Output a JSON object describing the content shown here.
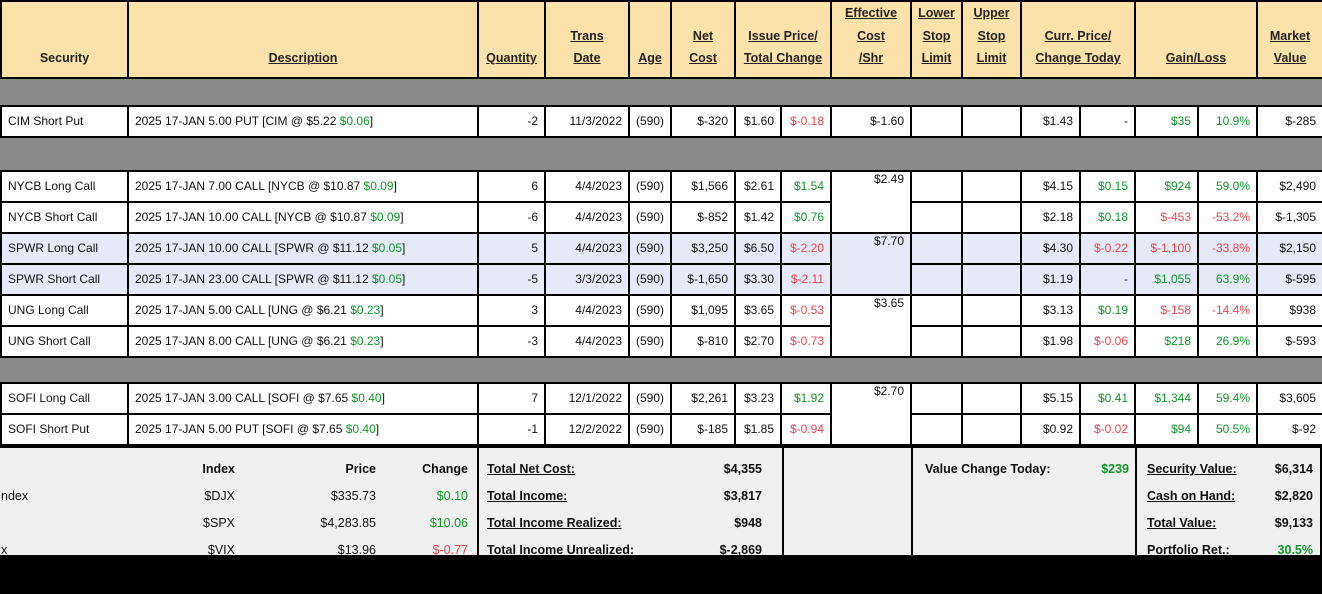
{
  "colors": {
    "positive": "#11962a",
    "negative": "#e8474c",
    "header_bg": "#fbe2aa",
    "group_alt_bg": "#e6e9f8",
    "grid_bg": "#8a8a8a",
    "panel_bg": "#f0f0f0"
  },
  "table": {
    "headers": [
      {
        "label": "Security",
        "colspan": 1,
        "underline": false
      },
      {
        "label": "Description",
        "colspan": 1,
        "underline": true
      },
      {
        "label": "Quantity",
        "colspan": 1,
        "underline": true
      },
      {
        "label": "Trans\nDate",
        "colspan": 1,
        "underline": true
      },
      {
        "label": "Age",
        "colspan": 1,
        "underline": true
      },
      {
        "label": "Net\nCost",
        "colspan": 1,
        "underline": true
      },
      {
        "label": "Issue Price/\nTotal Change",
        "colspan": 2,
        "underline": true
      },
      {
        "label": "Effective\nCost\n/Shr",
        "colspan": 1,
        "underline": true
      },
      {
        "label": "Lower\nStop\nLimit",
        "colspan": 1,
        "underline": true
      },
      {
        "label": "Upper\nStop\nLimit",
        "colspan": 1,
        "underline": true
      },
      {
        "label": "Curr. Price/\nChange Today",
        "colspan": 2,
        "underline": true
      },
      {
        "label": "Gain/Loss",
        "colspan": 2,
        "underline": true
      },
      {
        "label": "Market\nValue",
        "colspan": 1,
        "underline": true
      }
    ],
    "rows": [
      {
        "type": "spacer",
        "size": "a"
      },
      {
        "type": "position",
        "security": "CIM Short Put",
        "desc": "2025 17-JAN 5.00 PUT [CIM @ $5.22 ",
        "desc_chg": "$0.06",
        "desc_end": "]",
        "qty": "-2",
        "date": "11/3/2022",
        "age": "(590)",
        "net_cost": "$-320",
        "issue": "$1.60",
        "chg": "$-0.18",
        "chg_cls": "neg",
        "eff": "$-1.60",
        "eff_rows": 1,
        "lower": "",
        "upper": "",
        "curr": "$1.43",
        "today": "-",
        "today_cls": "",
        "gain": "$35",
        "gain_cls": "pos",
        "pct": "10.9%",
        "pct_cls": "pos",
        "mval": "$-285",
        "alt": false
      },
      {
        "type": "spacer",
        "size": "b"
      },
      {
        "type": "position",
        "security": "NYCB Long Call",
        "desc": "2025 17-JAN 7.00 CALL [NYCB @ $10.87 ",
        "desc_chg": "$0.09",
        "desc_end": "]",
        "qty": "6",
        "date": "4/4/2023",
        "age": "(590)",
        "net_cost": "$1,566",
        "issue": "$2.61",
        "chg": "$1.54",
        "chg_cls": "pos",
        "eff": "$2.49",
        "eff_rows": 2,
        "lower": "",
        "upper": "",
        "curr": "$4.15",
        "today": "$0.15",
        "today_cls": "pos",
        "gain": "$924",
        "gain_cls": "pos",
        "pct": "59.0%",
        "pct_cls": "pos",
        "mval": "$2,490",
        "alt": false
      },
      {
        "type": "position",
        "security": "NYCB Short Call",
        "desc": "2025 17-JAN 10.00 CALL [NYCB @ $10.87 ",
        "desc_chg": "$0.09",
        "desc_end": "]",
        "qty": "-6",
        "date": "4/4/2023",
        "age": "(590)",
        "net_cost": "$-852",
        "issue": "$1.42",
        "chg": "$0.76",
        "chg_cls": "pos",
        "eff": null,
        "lower": "",
        "upper": "",
        "curr": "$2.18",
        "today": "$0.18",
        "today_cls": "pos",
        "gain": "$-453",
        "gain_cls": "neg",
        "pct": "-53.2%",
        "pct_cls": "neg",
        "mval": "$-1,305",
        "alt": false
      },
      {
        "type": "position",
        "security": "SPWR Long Call",
        "desc": "2025 17-JAN 10.00 CALL [SPWR @ $11.12 ",
        "desc_chg": "$0.05",
        "desc_end": "]",
        "qty": "5",
        "date": "4/4/2023",
        "age": "(590)",
        "net_cost": "$3,250",
        "issue": "$6.50",
        "chg": "$-2.20",
        "chg_cls": "neg",
        "eff": "$7.70",
        "eff_rows": 2,
        "lower": "",
        "upper": "",
        "curr": "$4.30",
        "today": "$-0.22",
        "today_cls": "neg",
        "gain": "$-1,100",
        "gain_cls": "neg",
        "pct": "-33.8%",
        "pct_cls": "neg",
        "mval": "$2,150",
        "alt": true
      },
      {
        "type": "position",
        "security": "SPWR Short Call",
        "desc": "2025 17-JAN 23.00 CALL [SPWR @ $11.12 ",
        "desc_chg": "$0.05",
        "desc_end": "]",
        "qty": "-5",
        "date": "3/3/2023",
        "age": "(590)",
        "net_cost": "$-1,650",
        "issue": "$3.30",
        "chg": "$-2.11",
        "chg_cls": "neg",
        "eff": null,
        "lower": "",
        "upper": "",
        "curr": "$1.19",
        "today": "-",
        "today_cls": "",
        "gain": "$1,055",
        "gain_cls": "pos",
        "pct": "63.9%",
        "pct_cls": "pos",
        "mval": "$-595",
        "alt": true
      },
      {
        "type": "position",
        "security": "UNG Long Call",
        "desc": "2025 17-JAN 5.00 CALL [UNG @ $6.21 ",
        "desc_chg": "$0.23",
        "desc_end": "]",
        "qty": "3",
        "date": "4/4/2023",
        "age": "(590)",
        "net_cost": "$1,095",
        "issue": "$3.65",
        "chg": "$-0.53",
        "chg_cls": "neg",
        "eff": "$3.65",
        "eff_rows": 2,
        "lower": "",
        "upper": "",
        "curr": "$3.13",
        "today": "$0.19",
        "today_cls": "pos",
        "gain": "$-158",
        "gain_cls": "neg",
        "pct": "-14.4%",
        "pct_cls": "neg",
        "mval": "$938",
        "alt": false
      },
      {
        "type": "position",
        "security": "UNG Short Call",
        "desc": "2025 17-JAN 8.00 CALL [UNG @ $6.21 ",
        "desc_chg": "$0.23",
        "desc_end": "]",
        "qty": "-3",
        "date": "4/4/2023",
        "age": "(590)",
        "net_cost": "$-810",
        "issue": "$2.70",
        "chg": "$-0.73",
        "chg_cls": "neg",
        "eff": null,
        "lower": "",
        "upper": "",
        "curr": "$1.98",
        "today": "$-0.06",
        "today_cls": "neg",
        "gain": "$218",
        "gain_cls": "pos",
        "pct": "26.9%",
        "pct_cls": "pos",
        "mval": "$-593",
        "alt": false
      },
      {
        "type": "spacer",
        "size": "c"
      },
      {
        "type": "position",
        "security": "SOFI Long Call",
        "desc": "2025 17-JAN 3.00 CALL [SOFI @ $7.65 ",
        "desc_chg": "$0.40",
        "desc_end": "]",
        "qty": "7",
        "date": "12/1/2022",
        "age": "(590)",
        "net_cost": "$2,261",
        "issue": "$3.23",
        "chg": "$1.92",
        "chg_cls": "pos",
        "eff": "$2.70",
        "eff_rows": 2,
        "lower": "",
        "upper": "",
        "curr": "$5.15",
        "today": "$0.41",
        "today_cls": "pos",
        "gain": "$1,344",
        "gain_cls": "pos",
        "pct": "59.4%",
        "pct_cls": "pos",
        "mval": "$3,605",
        "alt": false
      },
      {
        "type": "position",
        "security": "SOFI Short Put",
        "desc": "2025 17-JAN 5.00 PUT [SOFI @ $7.65 ",
        "desc_chg": "$0.40",
        "desc_end": "]",
        "qty": "-1",
        "date": "12/2/2022",
        "age": "(590)",
        "net_cost": "$-185",
        "issue": "$1.85",
        "chg": "$-0.94",
        "chg_cls": "neg",
        "eff": null,
        "lower": "",
        "upper": "",
        "curr": "$0.92",
        "today": "$-0.02",
        "today_cls": "neg",
        "gain": "$94",
        "gain_cls": "pos",
        "pct": "50.5%",
        "pct_cls": "pos",
        "mval": "$-92",
        "alt": false
      }
    ]
  },
  "bottom": {
    "indices": {
      "headers": {
        "index": "Index",
        "price": "Price",
        "change": "Change"
      },
      "rows": [
        {
          "edge_label": "ndex",
          "sym": "$DJX",
          "price": "$335.73",
          "change": "$0.10",
          "cls": "pos"
        },
        {
          "edge_label": "",
          "sym": "$SPX",
          "price": "$4,283.85",
          "change": "$10.06",
          "cls": "pos"
        },
        {
          "edge_label": "x",
          "sym": "$VIX",
          "price": "$13.96",
          "change": "$-0.77",
          "cls": "neg"
        }
      ]
    },
    "totals": [
      {
        "label": "Total Net Cost:",
        "value": "$4,355"
      },
      {
        "label": "Total Income:",
        "value": "$3,817"
      },
      {
        "label": "Total Income Realized:",
        "value": "$948"
      },
      {
        "label": "Total Income Unrealized:",
        "value": "$-2,869"
      }
    ],
    "value_change": {
      "label": "Value Change Today:",
      "value": "$239",
      "cls": "pos"
    },
    "summary": [
      {
        "label": "Security Value:",
        "value": "$6,314",
        "cls": ""
      },
      {
        "label": "Cash on Hand:",
        "value": "$2,820",
        "cls": ""
      },
      {
        "label": "Total Value:",
        "value": "$9,133",
        "cls": ""
      },
      {
        "label": "Portfolio Ret.:",
        "value": "30.5%",
        "cls": "pos"
      }
    ]
  }
}
